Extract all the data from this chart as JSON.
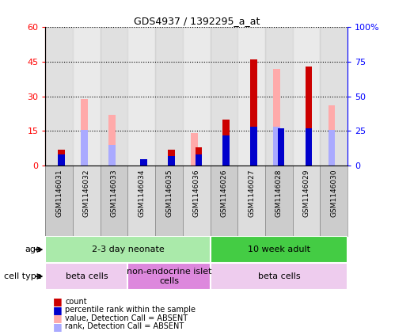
{
  "title": "GDS4937 / 1392295_a_at",
  "samples": [
    "GSM1146031",
    "GSM1146032",
    "GSM1146033",
    "GSM1146034",
    "GSM1146035",
    "GSM1146036",
    "GSM1146026",
    "GSM1146027",
    "GSM1146028",
    "GSM1146029",
    "GSM1146030"
  ],
  "count_red": [
    7,
    0,
    0,
    3,
    7,
    8,
    20,
    46,
    0,
    43,
    0
  ],
  "rank_blue": [
    8,
    0,
    0,
    5,
    7,
    8,
    22,
    28,
    27,
    27,
    0
  ],
  "value_absent_pink": [
    0,
    29,
    22,
    0,
    0,
    14,
    0,
    0,
    42,
    0,
    26
  ],
  "rank_absent_lblue": [
    0,
    26,
    15,
    0,
    0,
    0,
    0,
    0,
    28,
    0,
    26
  ],
  "ylim_left": [
    0,
    60
  ],
  "ylim_right": [
    0,
    100
  ],
  "yticks_left": [
    0,
    15,
    30,
    45,
    60
  ],
  "ytick_labels_left": [
    "0",
    "15",
    "30",
    "45",
    "60"
  ],
  "yticks_right": [
    0,
    25,
    50,
    75,
    100
  ],
  "ytick_labels_right": [
    "0",
    "25",
    "50",
    "75",
    "100%"
  ],
  "color_red": "#cc0000",
  "color_blue": "#0000cc",
  "color_pink": "#ffaaaa",
  "color_lblue": "#aaaaff",
  "age_groups": [
    {
      "label": "2-3 day neonate",
      "start": 0,
      "end": 6,
      "color": "#aaeaaa"
    },
    {
      "label": "10 week adult",
      "start": 6,
      "end": 11,
      "color": "#44cc44"
    }
  ],
  "cell_type_groups": [
    {
      "label": "beta cells",
      "start": 0,
      "end": 3,
      "color": "#eeccee"
    },
    {
      "label": "non-endocrine islet\ncells",
      "start": 3,
      "end": 6,
      "color": "#dd88dd"
    },
    {
      "label": "beta cells",
      "start": 6,
      "end": 11,
      "color": "#eeccee"
    }
  ],
  "legend_items": [
    {
      "label": "count",
      "color": "#cc0000"
    },
    {
      "label": "percentile rank within the sample",
      "color": "#0000cc"
    },
    {
      "label": "value, Detection Call = ABSENT",
      "color": "#ffaaaa"
    },
    {
      "label": "rank, Detection Call = ABSENT",
      "color": "#aaaaff"
    }
  ],
  "age_label": "age",
  "cell_type_label": "cell type",
  "bar_width": 0.35,
  "col_bg_even": "#cccccc",
  "col_bg_odd": "#dddddd"
}
